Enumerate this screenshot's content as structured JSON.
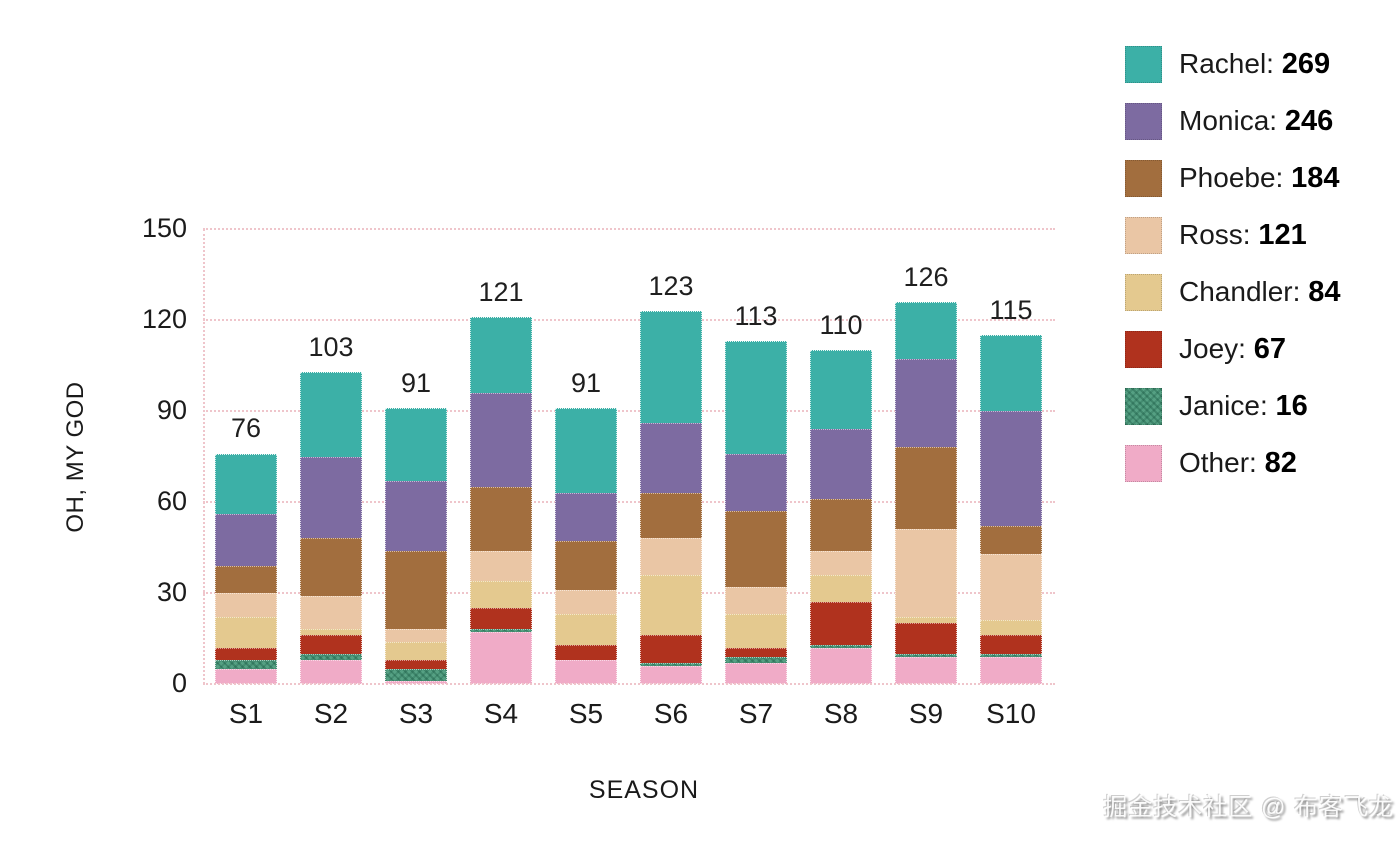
{
  "chart_data": {
    "type": "bar",
    "variant": "stacked-bar",
    "categories": [
      "S1",
      "S2",
      "S3",
      "S4",
      "S5",
      "S6",
      "S7",
      "S8",
      "S9",
      "S10"
    ],
    "bar_totals": [
      76,
      103,
      91,
      121,
      91,
      123,
      113,
      110,
      126,
      115
    ],
    "series": [
      {
        "name": "Rachel",
        "legend_total": 269,
        "color": "#3cb0a7",
        "textured": false,
        "values": [
          20,
          28,
          24,
          25,
          28,
          37,
          37,
          26,
          19,
          25
        ]
      },
      {
        "name": "Monica",
        "legend_total": 246,
        "color": "#7d6ba1",
        "textured": false,
        "values": [
          17,
          27,
          23,
          31,
          16,
          23,
          19,
          23,
          29,
          38
        ]
      },
      {
        "name": "Phoebe",
        "legend_total": 184,
        "color": "#a26e3e",
        "textured": false,
        "values": [
          9,
          19,
          26,
          21,
          16,
          15,
          25,
          17,
          27,
          9
        ]
      },
      {
        "name": "Ross",
        "legend_total": 121,
        "color": "#eac6a5",
        "textured": false,
        "values": [
          8,
          11,
          4,
          10,
          8,
          12,
          9,
          8,
          29,
          22
        ]
      },
      {
        "name": "Chandler",
        "legend_total": 84,
        "color": "#e4c98f",
        "textured": false,
        "values": [
          10,
          2,
          6,
          9,
          10,
          20,
          11,
          9,
          2,
          5
        ]
      },
      {
        "name": "Joey",
        "legend_total": 67,
        "color": "#b0321e",
        "textured": false,
        "values": [
          4,
          6,
          3,
          7,
          5,
          9,
          3,
          14,
          10,
          6
        ]
      },
      {
        "name": "Janice",
        "legend_total": 16,
        "color": "#55a083",
        "textured": true,
        "values": [
          3,
          2,
          4,
          1,
          0,
          1,
          2,
          1,
          1,
          1
        ]
      },
      {
        "name": "Other",
        "legend_total": 82,
        "color": "#f0abc7",
        "textured": false,
        "values": [
          5,
          8,
          1,
          17,
          8,
          6,
          7,
          12,
          9,
          9
        ]
      }
    ],
    "stack_order_bottom_to_top": [
      "Other",
      "Janice",
      "Joey",
      "Chandler",
      "Ross",
      "Phoebe",
      "Monica",
      "Rachel"
    ],
    "xlabel": "SEASON",
    "ylabel": "OH, MY GOD",
    "ylim": [
      0,
      150
    ],
    "y_ticks": [
      0,
      30,
      60,
      90,
      120,
      150
    ],
    "grid": "horizontal dotted, shown at every y tick, drawn behind bars",
    "legend_position": "top-right",
    "legend_separator": ": "
  },
  "colors": {
    "background": "#ffffff",
    "gridline_pink": "#efc5cb",
    "axis_text": "#1b1b1b",
    "value_label_text": "#1f1f1f"
  },
  "watermark": "掘金技术社区 @ 布客飞龙"
}
